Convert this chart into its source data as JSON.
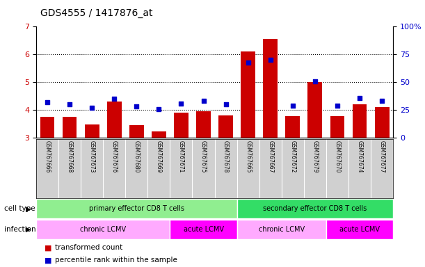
{
  "title": "GDS4555 / 1417876_at",
  "samples": [
    "GSM767666",
    "GSM767668",
    "GSM767673",
    "GSM767676",
    "GSM767680",
    "GSM767669",
    "GSM767671",
    "GSM767675",
    "GSM767678",
    "GSM767665",
    "GSM767667",
    "GSM767672",
    "GSM767679",
    "GSM767670",
    "GSM767674",
    "GSM767677"
  ],
  "bar_values": [
    3.75,
    3.75,
    3.48,
    4.3,
    3.45,
    3.22,
    3.9,
    3.95,
    3.8,
    6.1,
    6.57,
    3.78,
    5.0,
    3.78,
    4.2,
    4.1
  ],
  "dot_values": [
    32,
    30,
    27,
    35,
    28,
    26,
    31,
    33,
    30,
    68,
    70,
    29,
    51,
    29,
    36,
    33
  ],
  "ylim_left": [
    3,
    7
  ],
  "ylim_right": [
    0,
    100
  ],
  "yticks_left": [
    3,
    4,
    5,
    6,
    7
  ],
  "yticks_right": [
    0,
    25,
    50,
    75,
    100
  ],
  "bar_color": "#CC0000",
  "dot_color": "#0000CC",
  "bar_bottom": 3,
  "cell_type_groups": [
    {
      "label": "primary effector CD8 T cells",
      "start": 0,
      "end": 9,
      "color": "#90EE90"
    },
    {
      "label": "secondary effector CD8 T cells",
      "start": 9,
      "end": 16,
      "color": "#33DD66"
    }
  ],
  "infection_groups": [
    {
      "label": "chronic LCMV",
      "start": 0,
      "end": 6,
      "color": "#FFAAFF"
    },
    {
      "label": "acute LCMV",
      "start": 6,
      "end": 9,
      "color": "#FF00FF"
    },
    {
      "label": "chronic LCMV",
      "start": 9,
      "end": 13,
      "color": "#FFAAFF"
    },
    {
      "label": "acute LCMV",
      "start": 13,
      "end": 16,
      "color": "#FF00FF"
    }
  ],
  "legend_red_label": "transformed count",
  "legend_blue_label": "percentile rank within the sample",
  "cell_type_label": "cell type",
  "infection_label": "infection",
  "bg_color": "#FFFFFF",
  "plot_bg_color": "#FFFFFF",
  "tick_label_color_left": "#CC0000",
  "tick_label_color_right": "#0000CC",
  "sample_label_color": "#000000",
  "gray_bg_color": "#D0D0D0",
  "gray_line_color": "#FFFFFF"
}
